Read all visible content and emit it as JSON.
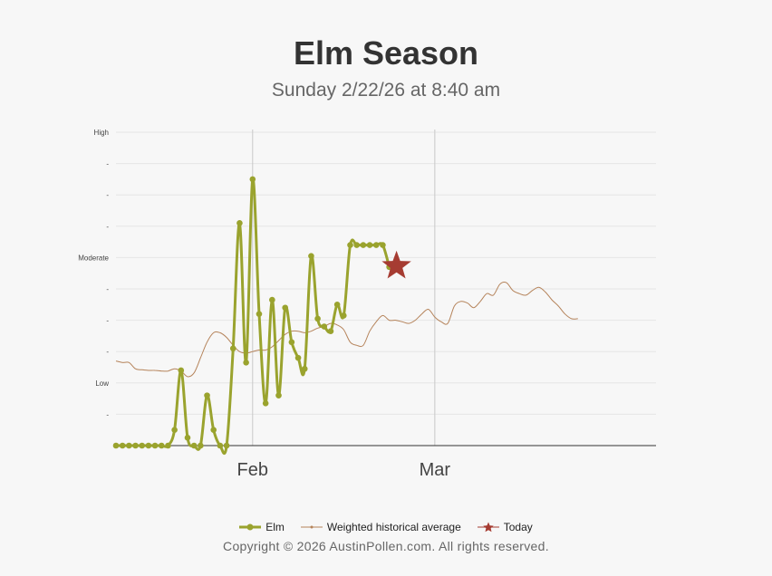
{
  "title": "Elm Season",
  "subtitle": "Sunday 2/22/26 at 8:40 am",
  "copyright": "Copyright © 2026 AustinPollen.com.  All rights reserved.",
  "colors": {
    "elm": "#9aa32e",
    "average": "#b5835a",
    "today": "#a63c32",
    "grid": "#e6e6e6",
    "month_line": "#c8c8c8",
    "axis": "#333333"
  },
  "legend": [
    {
      "label": "Elm",
      "icon": "line-dot-icon"
    },
    {
      "label": "Weighted historical average",
      "icon": "thin-line-icon"
    },
    {
      "label": "Today",
      "icon": "star-icon"
    }
  ],
  "chart_data": {
    "type": "line",
    "x_start": "2026-01-11",
    "x_end": "2026-04-04",
    "xticks": [
      {
        "label": "Feb",
        "date": "2026-02-01"
      },
      {
        "label": "Mar",
        "date": "2026-03-01"
      }
    ],
    "y_range": [
      0,
      10
    ],
    "y_ticks": [
      {
        "value": 10,
        "label": "High"
      },
      {
        "value": 9,
        "label": "-"
      },
      {
        "value": 8,
        "label": "-"
      },
      {
        "value": 7,
        "label": "-"
      },
      {
        "value": 6,
        "label": "Moderate"
      },
      {
        "value": 5,
        "label": "-"
      },
      {
        "value": 4,
        "label": "-"
      },
      {
        "value": 3,
        "label": "-"
      },
      {
        "value": 2,
        "label": "Low"
      },
      {
        "value": 1,
        "label": "-"
      }
    ],
    "grid": true,
    "legend_position": "bottom",
    "series": [
      {
        "name": "Elm",
        "dates": [
          "2026-01-11",
          "2026-01-12",
          "2026-01-13",
          "2026-01-14",
          "2026-01-15",
          "2026-01-16",
          "2026-01-17",
          "2026-01-18",
          "2026-01-19",
          "2026-01-20",
          "2026-01-21",
          "2026-01-22",
          "2026-01-23",
          "2026-01-24",
          "2026-01-25",
          "2026-01-26",
          "2026-01-27",
          "2026-01-28",
          "2026-01-29",
          "2026-01-30",
          "2026-01-31",
          "2026-02-01",
          "2026-02-02",
          "2026-02-03",
          "2026-02-04",
          "2026-02-05",
          "2026-02-06",
          "2026-02-07",
          "2026-02-08",
          "2026-02-09",
          "2026-02-10",
          "2026-02-11",
          "2026-02-12",
          "2026-02-13",
          "2026-02-14",
          "2026-02-15",
          "2026-02-16",
          "2026-02-17",
          "2026-02-18",
          "2026-02-19",
          "2026-02-20",
          "2026-02-21",
          "2026-02-22"
        ],
        "values": [
          0,
          0,
          0,
          0,
          0,
          0,
          0,
          0,
          0,
          0.5,
          2.4,
          0.25,
          0,
          0,
          1.6,
          0.5,
          0,
          0,
          3.1,
          7.1,
          2.65,
          8.5,
          4.2,
          1.35,
          4.65,
          1.6,
          4.4,
          3.3,
          2.8,
          2.45,
          6.05,
          4.05,
          3.8,
          3.65,
          4.5,
          4.15,
          6.4,
          6.4,
          6.4,
          6.4,
          6.4,
          6.4,
          5.7
        ]
      },
      {
        "name": "Weighted historical average",
        "values_by_day": [
          2.7,
          2.65,
          2.65,
          2.45,
          2.42,
          2.4,
          2.4,
          2.38,
          2.38,
          2.45,
          2.38,
          2.2,
          2.32,
          2.8,
          3.3,
          3.6,
          3.6,
          3.45,
          3.2,
          3.0,
          2.95,
          3.0,
          3.05,
          3.05,
          3.15,
          3.35,
          3.55,
          3.65,
          3.65,
          3.6,
          3.65,
          3.75,
          3.8,
          3.9,
          3.85,
          3.7,
          3.3,
          3.2,
          3.2,
          3.65,
          3.95,
          4.15,
          4.0,
          4.0,
          3.95,
          3.9,
          4.0,
          4.2,
          4.35,
          4.1,
          3.95,
          3.9,
          4.45,
          4.6,
          4.55,
          4.4,
          4.6,
          4.85,
          4.8,
          5.15,
          5.2,
          4.95,
          4.85,
          4.8,
          4.95,
          5.05,
          4.9,
          4.65,
          4.45,
          4.2,
          4.05,
          4.05
        ]
      }
    ],
    "today": {
      "date": "2026-02-22",
      "value": 5.7
    }
  }
}
